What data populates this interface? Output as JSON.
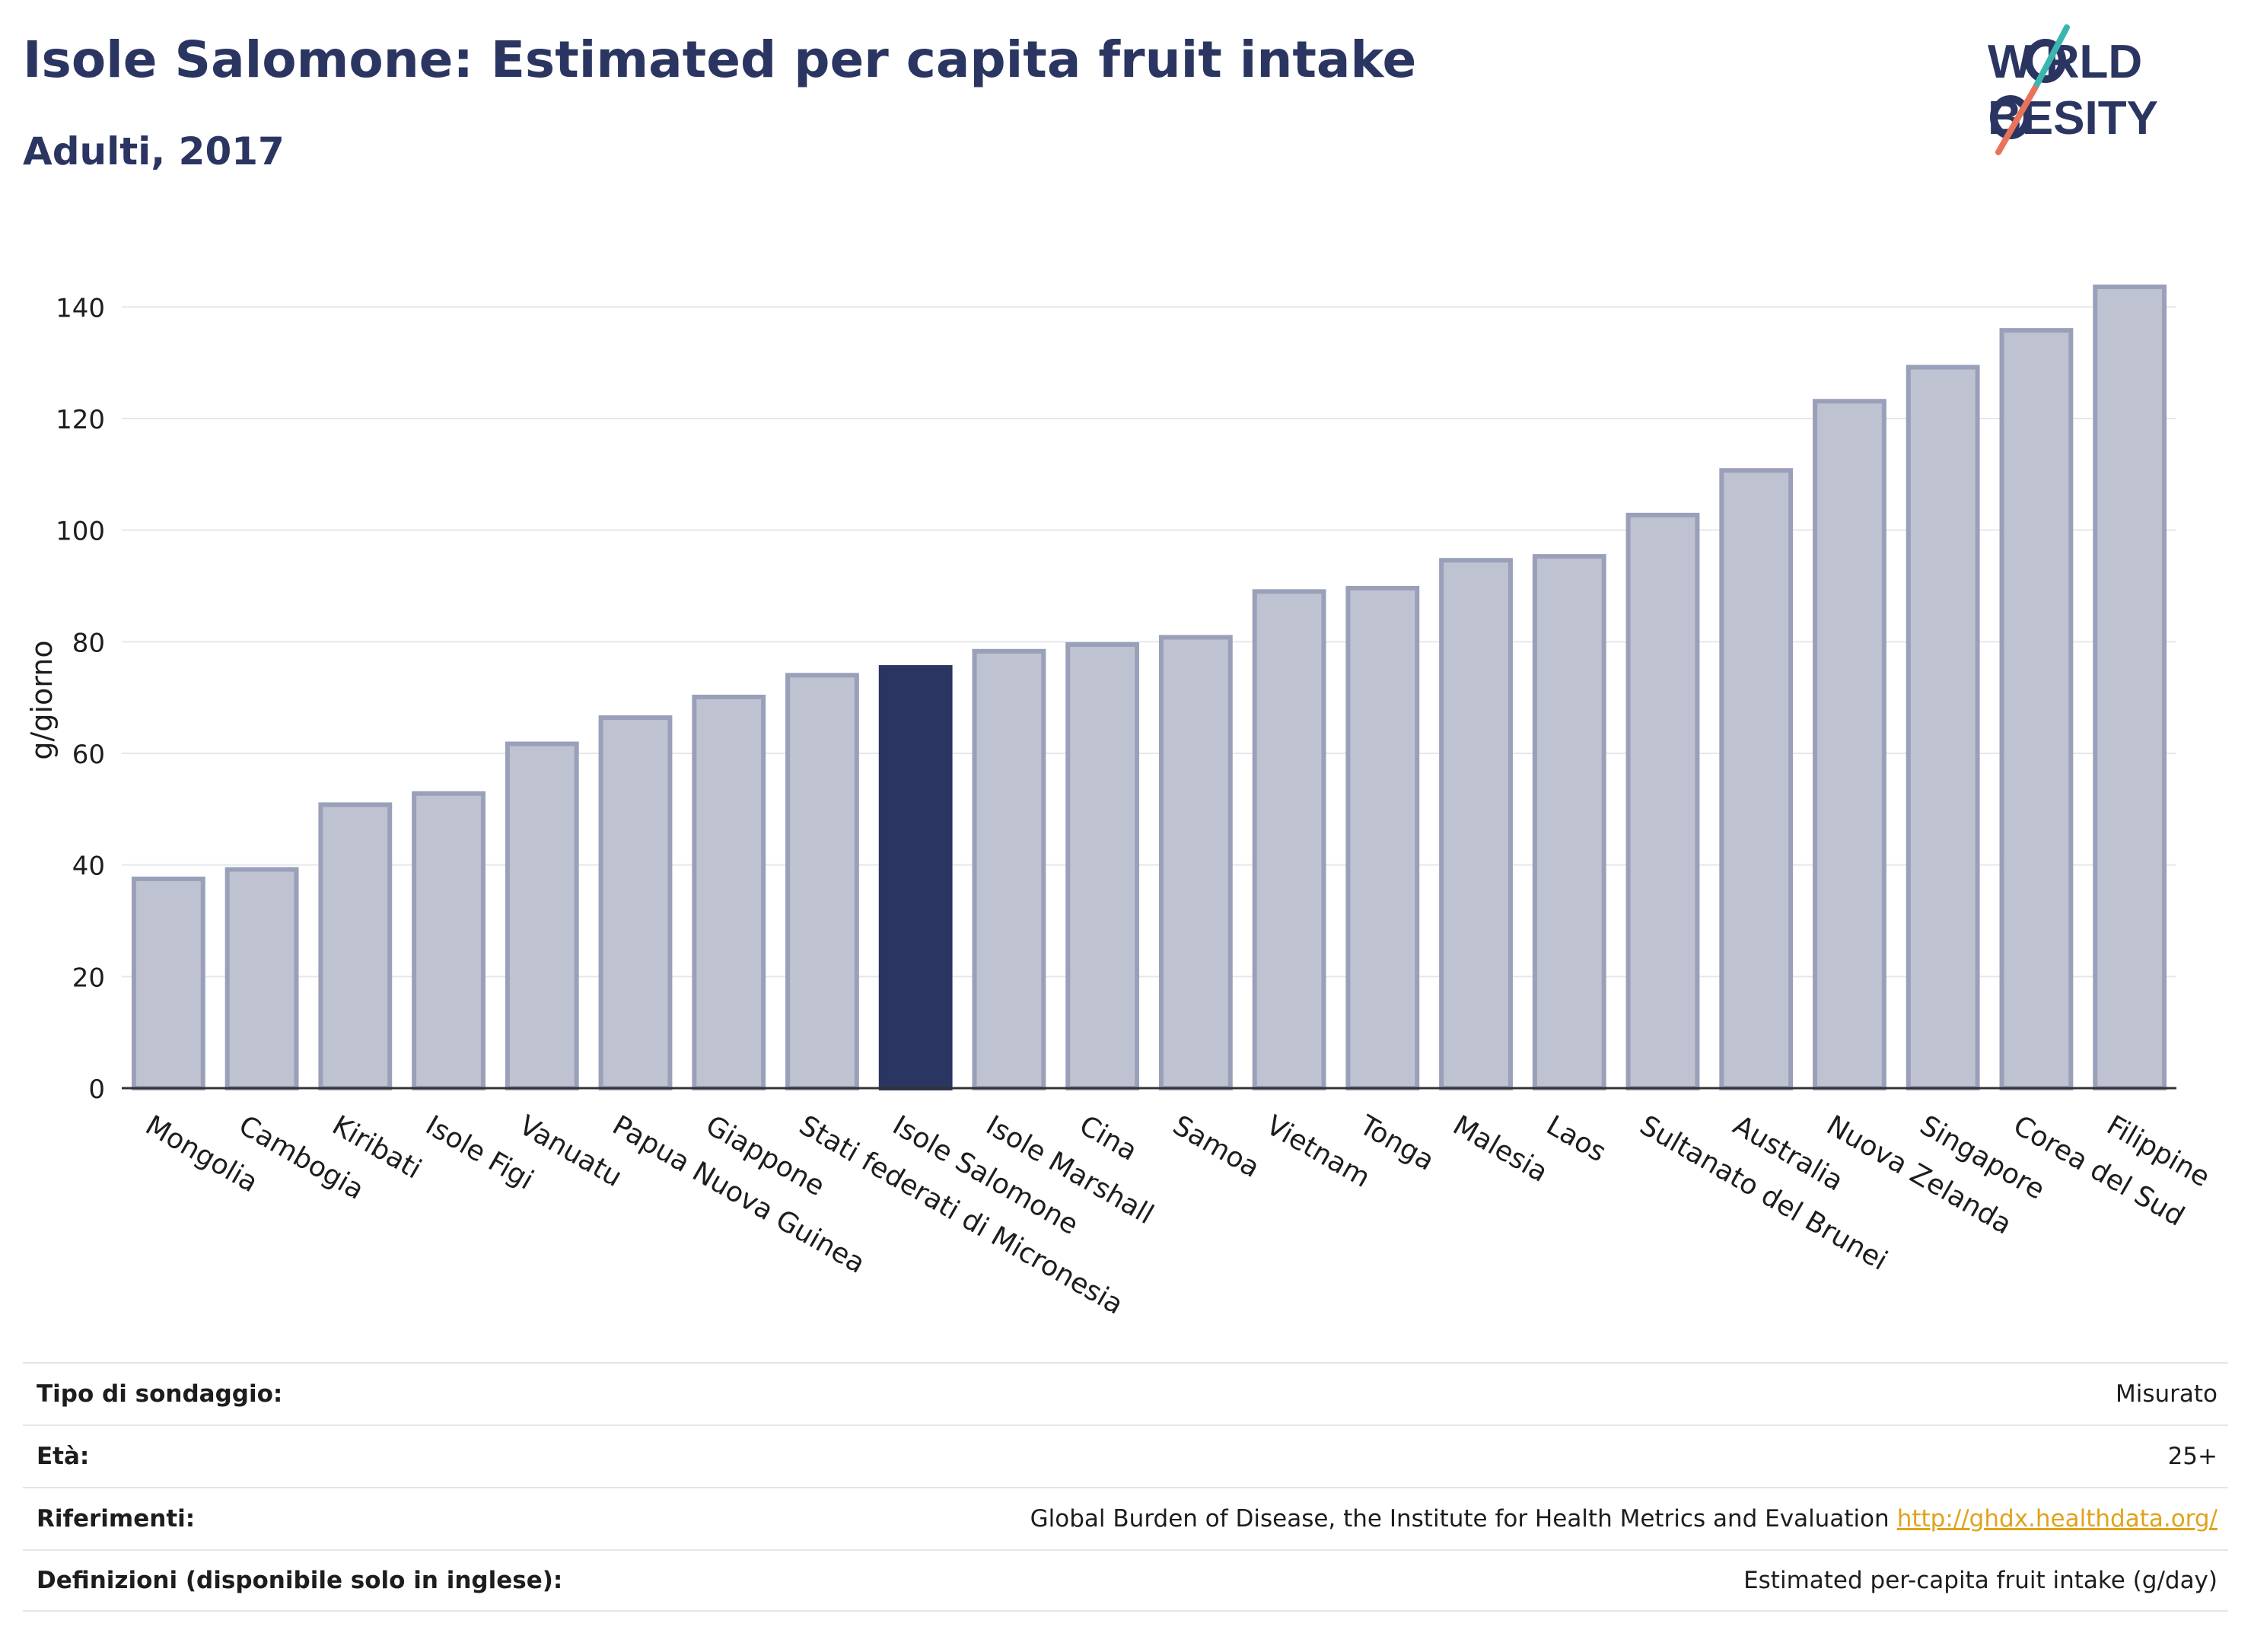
{
  "header": {
    "title": "Isole Salomone: Estimated per capita fruit intake",
    "subtitle": "Adulti, 2017"
  },
  "logo": {
    "line1": "W   RLD",
    "line2": "  BESITY",
    "accent_colors": [
      "#3ab5b0",
      "#e8735a"
    ],
    "text_color": "#2b3561"
  },
  "chart_data": {
    "type": "bar",
    "ylabel": "g/giorno",
    "ylim": [
      0,
      150
    ],
    "yticks": [
      0,
      20,
      40,
      60,
      80,
      100,
      120,
      140
    ],
    "grid": true,
    "highlight_category": "Isole Salomone",
    "colors": {
      "bar": "#bfc2d0",
      "bar_edge": "#9aa0b9",
      "highlight": "#2b3561"
    },
    "categories": [
      "Mongolia",
      "Cambogia",
      "Kiribati",
      "Isole Figi",
      "Vanuatu",
      "Papua Nuova Guinea",
      "Giappone",
      "Stati federati di Micronesia",
      "Isole Salomone",
      "Isole Marshall",
      "Cina",
      "Samoa",
      "Vietnam",
      "Tonga",
      "Malesia",
      "Laos",
      "Sultanato del Brunei",
      "Australia",
      "Nuova Zelanda",
      "Singapore",
      "Corea del Sud",
      "Filippine"
    ],
    "values": [
      37.5,
      39.2,
      50.8,
      52.8,
      61.7,
      66.4,
      70.1,
      74.0,
      75.4,
      78.3,
      79.5,
      80.8,
      89.0,
      89.6,
      94.6,
      95.3,
      102.7,
      110.7,
      123.1,
      129.2,
      135.8,
      143.6
    ]
  },
  "info": {
    "rows": [
      {
        "label": "Tipo di sondaggio:",
        "value": "Misurato"
      },
      {
        "label": "Età:",
        "value": "25+"
      },
      {
        "label": "Riferimenti:",
        "value": "Global Burden of Disease, the Institute for Health Metrics and Evaluation",
        "link": "http://ghdx.healthdata.org/"
      },
      {
        "label": "Definizioni (disponibile solo in inglese):",
        "value": "Estimated per-capita fruit intake (g/day)"
      }
    ]
  }
}
